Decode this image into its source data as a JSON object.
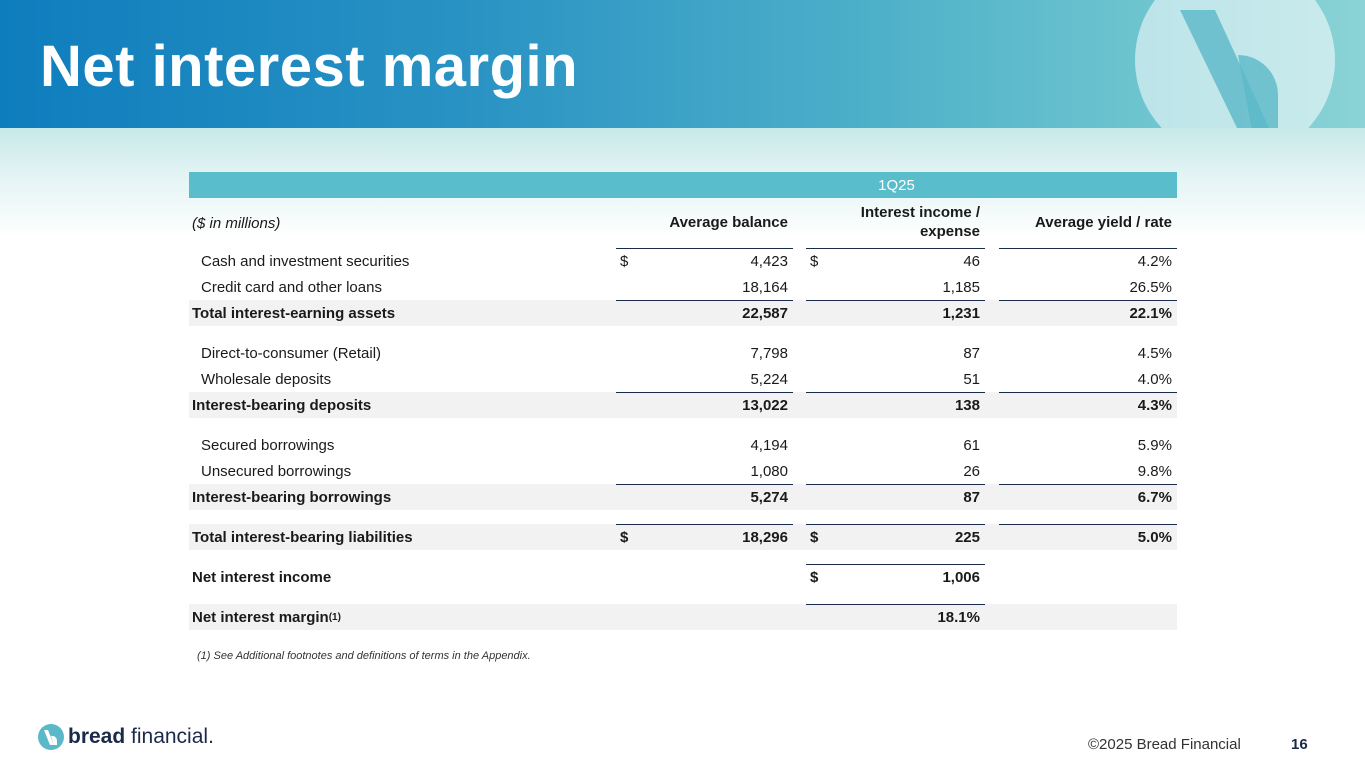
{
  "slide": {
    "title": "Net interest margin",
    "page_number": "16",
    "copyright": "©2025 Bread Financial",
    "footnote": "(1) See Additional footnotes and definitions of terms in the Appendix.",
    "brand": {
      "part1": "bread",
      "part2": " financial."
    }
  },
  "table": {
    "period": "1Q25",
    "unit_label": "($ in millions)",
    "columns": {
      "balance": "Average balance",
      "income_line1": "Interest income /",
      "income_line2": "expense",
      "yield": "Average yield / rate"
    },
    "rows": {
      "cash": {
        "label": "Cash and investment securities",
        "balance": "4,423",
        "income": "46",
        "yield": "4.2%"
      },
      "credit": {
        "label": "Credit card and other loans",
        "balance": "18,164",
        "income": "1,185",
        "yield": "26.5%"
      },
      "total_assets": {
        "label": "Total interest-earning assets",
        "balance": "22,587",
        "income": "1,231",
        "yield": "22.1%"
      },
      "dtc": {
        "label": "Direct-to-consumer (Retail)",
        "balance": "7,798",
        "income": "87",
        "yield": "4.5%"
      },
      "wholesale": {
        "label": "Wholesale deposits",
        "balance": "5,224",
        "income": "51",
        "yield": "4.0%"
      },
      "deposits": {
        "label": "Interest-bearing deposits",
        "balance": "13,022",
        "income": "138",
        "yield": "4.3%"
      },
      "secured": {
        "label": "Secured borrowings",
        "balance": "4,194",
        "income": "61",
        "yield": "5.9%"
      },
      "unsecured": {
        "label": "Unsecured borrowings",
        "balance": "1,080",
        "income": "26",
        "yield": "9.8%"
      },
      "borrowings": {
        "label": "Interest-bearing borrowings",
        "balance": "5,274",
        "income": "87",
        "yield": "6.7%"
      },
      "liabilities": {
        "label": "Total interest-bearing liabilities",
        "balance": "18,296",
        "income": "225",
        "yield": "5.0%"
      },
      "nii": {
        "label": "Net interest income",
        "income": "1,006"
      },
      "nim": {
        "label": "Net interest margin",
        "sup": "(1)",
        "income": "18.1%"
      }
    },
    "currency_symbol": "$"
  }
}
